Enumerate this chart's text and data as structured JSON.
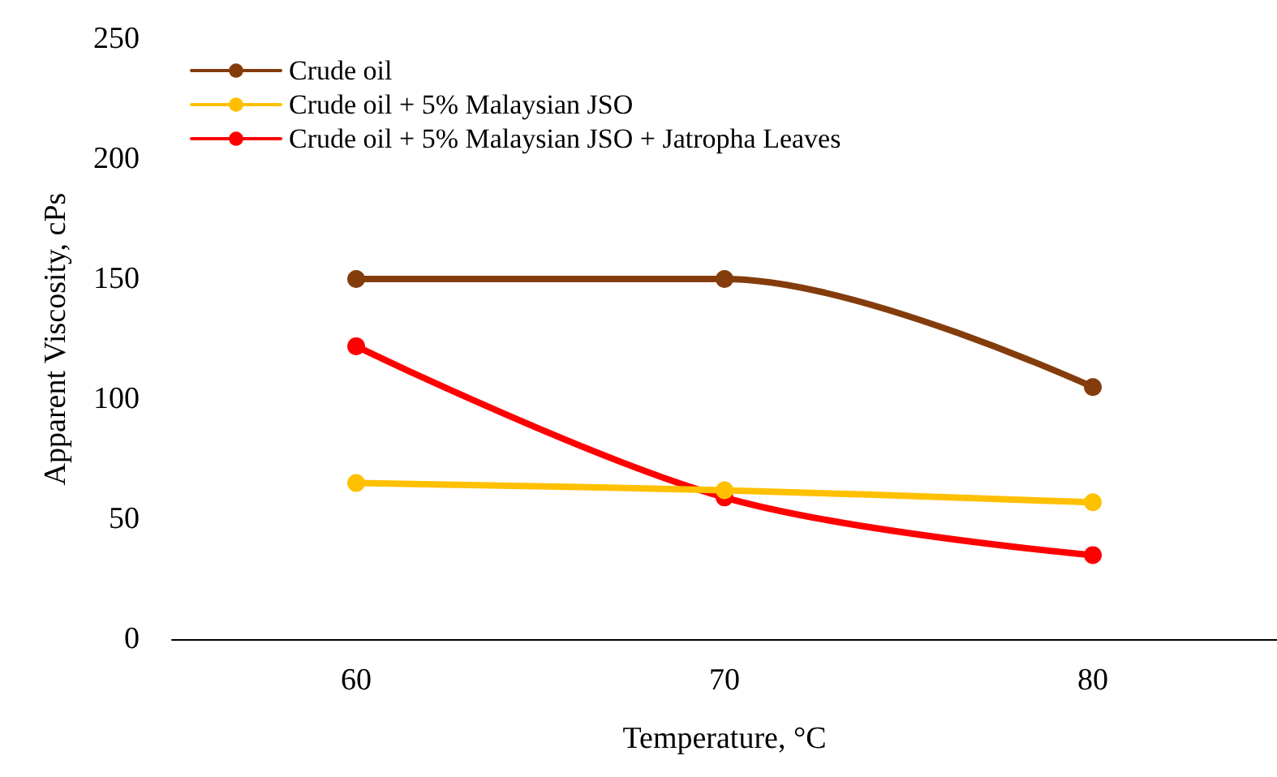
{
  "chart_data": {
    "type": "line",
    "xlabel": "Temperature, °C",
    "ylabel": "Apparent Viscosity, cPs",
    "categories": [
      "60",
      "70",
      "80"
    ],
    "series": [
      {
        "name": "Crude oil",
        "color": "#843c0c",
        "values": [
          150,
          150,
          105
        ]
      },
      {
        "name": "Crude oil + 5% Malaysian JSO",
        "color": "#ffc000",
        "values": [
          65,
          62,
          57
        ]
      },
      {
        "name": "Crude oil + 5% Malaysian JSO + Jatropha Leaves",
        "color": "#ff0000",
        "values": [
          122,
          59,
          35
        ]
      }
    ],
    "ylim": [
      0,
      250
    ],
    "yticks": [
      0,
      50,
      100,
      150,
      200,
      250
    ],
    "grid": false,
    "legend": "top left",
    "marker": "circle",
    "line_style": "solid"
  }
}
